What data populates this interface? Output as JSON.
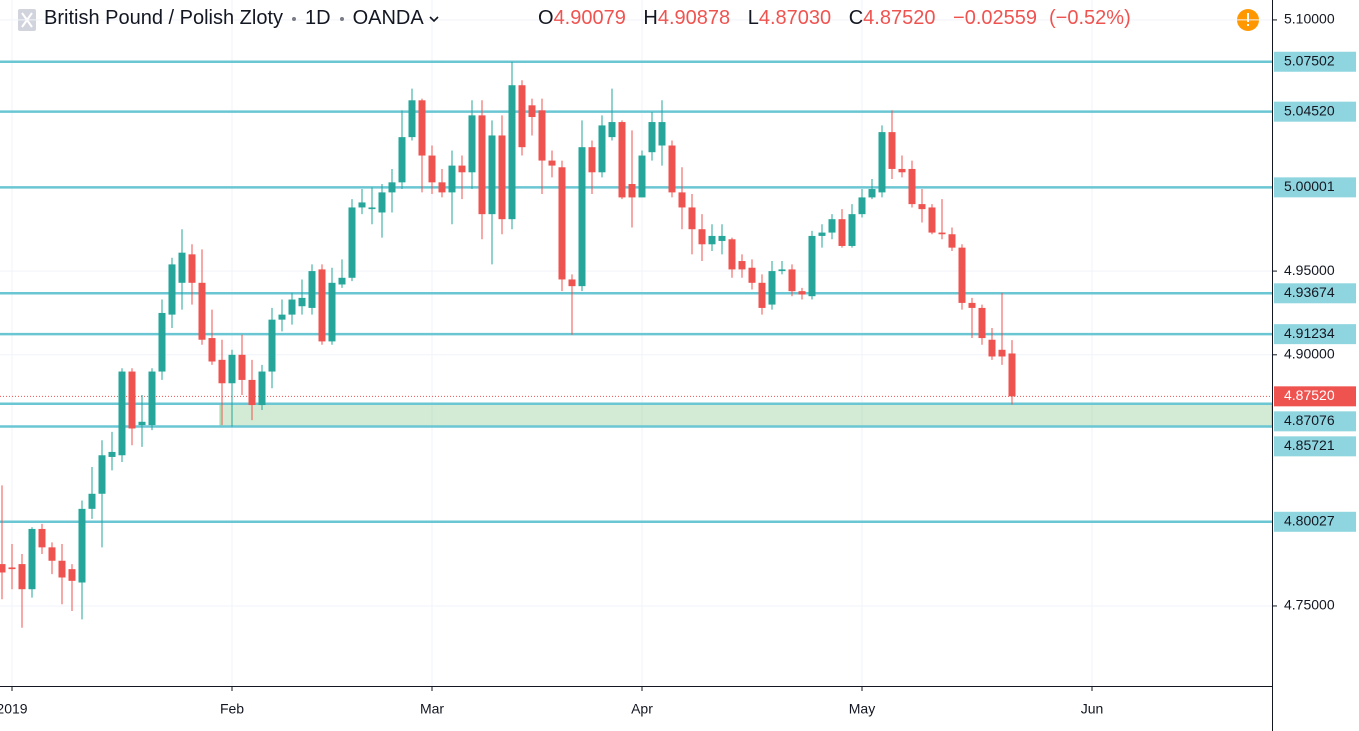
{
  "chart_data": {
    "type": "candlestick",
    "symbol": "British Pound / Polish Zloty",
    "interval": "1D",
    "exchange": "OANDA",
    "ohlc_names": [
      "O",
      "H",
      "L",
      "C"
    ],
    "ohlc_labels": [
      "4.90079",
      "4.90878",
      "4.87030",
      "4.87520"
    ],
    "change_label": "−0.02559",
    "change_pct_label": "(−0.52%)",
    "up_color": "#26a69a",
    "down_color": "#ef5350",
    "level_color": "#6ac6d3",
    "open": [
      4.775,
      4.773,
      4.775,
      4.76,
      4.796,
      4.785,
      4.777,
      4.772,
      4.764,
      4.808,
      4.817,
      4.839,
      4.84,
      4.89,
      4.858,
      4.858,
      4.89,
      4.924,
      4.943,
      4.96,
      4.943,
      4.91,
      4.897,
      4.883,
      4.9,
      4.885,
      4.87,
      4.89,
      4.921,
      4.924,
      4.929,
      4.928,
      4.951,
      4.908,
      4.942,
      4.946,
      4.988,
      4.987,
      4.985,
      4.997,
      5.003,
      5.03,
      5.052,
      5.019,
      5.003,
      4.997,
      5.013,
      5.009,
      5.043,
      4.984,
      5.031,
      4.981,
      5.061,
      5.049,
      5.046,
      5.016,
      5.012,
      4.945,
      4.941,
      5.024,
      5.009,
      5.03,
      5.039,
      5.002,
      4.994,
      5.021,
      5.025,
      5.025,
      4.997,
      4.988,
      4.975,
      4.966,
      4.968,
      4.969,
      4.956,
      4.952,
      4.943,
      4.93,
      4.95,
      4.951,
      4.938,
      4.935,
      4.971,
      4.973,
      4.981,
      4.965,
      4.984,
      4.994,
      4.997,
      5.033,
      5.011,
      5.011,
      4.99,
      4.988,
      4.973,
      4.972,
      4.964,
      4.931,
      4.928,
      4.909,
      4.903,
      4.90079
    ],
    "high": [
      4.822,
      4.787,
      4.781,
      4.797,
      4.799,
      4.788,
      4.787,
      4.775,
      4.813,
      4.833,
      4.849,
      4.854,
      4.892,
      4.892,
      4.876,
      4.892,
      4.933,
      4.958,
      4.975,
      4.966,
      4.963,
      4.927,
      4.909,
      4.903,
      4.912,
      4.897,
      4.894,
      4.928,
      4.933,
      4.937,
      4.945,
      4.954,
      4.954,
      4.952,
      4.957,
      4.993,
      4.999,
      5.0,
      5.002,
      5.011,
      5.046,
      5.059,
      5.053,
      5.025,
      5.011,
      5.022,
      5.019,
      5.052,
      5.052,
      5.04,
      5.043,
      5.075,
      5.064,
      5.053,
      5.053,
      5.022,
      5.016,
      4.948,
      5.04,
      5.028,
      5.043,
      5.059,
      5.04,
      5.034,
      5.022,
      5.045,
      5.052,
      5.028,
      5.012,
      4.996,
      4.984,
      4.978,
      4.978,
      4.97,
      4.96,
      4.957,
      4.948,
      4.956,
      4.956,
      4.954,
      4.94,
      4.974,
      4.978,
      4.984,
      4.987,
      4.99,
      4.999,
      5.005,
      5.037,
      5.046,
      5.019,
      5.016,
      4.999,
      4.99,
      4.993,
      4.976,
      4.966,
      4.934,
      4.93,
      4.916,
      4.937,
      4.90878
    ],
    "low": [
      4.754,
      4.76,
      4.737,
      4.755,
      4.781,
      4.769,
      4.751,
      4.747,
      4.742,
      4.802,
      4.785,
      4.831,
      4.836,
      4.846,
      4.845,
      4.855,
      4.885,
      4.916,
      4.927,
      4.93,
      4.906,
      4.894,
      4.858,
      4.857,
      4.876,
      4.861,
      4.867,
      4.88,
      4.914,
      4.918,
      4.924,
      4.924,
      4.906,
      4.906,
      4.94,
      4.944,
      4.984,
      4.978,
      4.97,
      4.985,
      4.999,
      5.028,
      4.997,
      4.996,
      4.994,
      4.978,
      4.993,
      4.999,
      4.969,
      4.954,
      4.972,
      4.975,
      5.019,
      5.031,
      4.996,
      5.006,
      4.938,
      4.912,
      4.938,
      4.996,
      5.006,
      5.028,
      4.993,
      4.976,
      4.994,
      5.016,
      5.013,
      4.994,
      4.975,
      4.96,
      4.956,
      4.962,
      4.96,
      4.946,
      4.946,
      4.939,
      4.924,
      4.927,
      4.948,
      4.935,
      4.933,
      4.933,
      4.964,
      4.969,
      4.964,
      4.964,
      4.982,
      4.993,
      4.994,
      5.005,
      5.006,
      4.988,
      4.979,
      4.972,
      4.969,
      4.962,
      4.927,
      4.91,
      4.906,
      4.897,
      4.894,
      4.8703
    ],
    "close": [
      4.77,
      4.772,
      4.76,
      4.796,
      4.785,
      4.777,
      4.767,
      4.765,
      4.808,
      4.817,
      4.84,
      4.842,
      4.89,
      4.856,
      4.86,
      4.89,
      4.925,
      4.954,
      4.961,
      4.943,
      4.909,
      4.896,
      4.883,
      4.9,
      4.885,
      4.87,
      4.89,
      4.921,
      4.924,
      4.933,
      4.934,
      4.95,
      4.908,
      4.943,
      4.946,
      4.988,
      4.991,
      4.988,
      4.997,
      5.003,
      5.03,
      5.052,
      5.019,
      5.003,
      4.997,
      5.013,
      5.009,
      5.043,
      4.984,
      5.031,
      4.981,
      5.061,
      5.024,
      5.042,
      5.016,
      5.013,
      4.945,
      4.941,
      5.024,
      5.009,
      5.037,
      5.039,
      4.994,
      4.994,
      5.019,
      5.039,
      5.039,
      4.997,
      4.988,
      4.975,
      4.966,
      4.971,
      4.971,
      4.951,
      4.951,
      4.943,
      4.928,
      4.95,
      4.951,
      4.938,
      4.936,
      4.971,
      4.973,
      4.981,
      4.965,
      4.984,
      4.994,
      4.999,
      5.033,
      5.011,
      5.009,
      4.99,
      4.987,
      4.973,
      4.972,
      4.964,
      4.931,
      4.928,
      4.91,
      4.899,
      4.899,
      4.8752
    ],
    "last_price": 4.8752,
    "levels": [
      {
        "value": 5.07502,
        "label": "5.07502"
      },
      {
        "value": 5.0452,
        "label": "5.04520"
      },
      {
        "value": 5.00001,
        "label": "5.00001"
      },
      {
        "value": 4.93674,
        "label": "4.93674"
      },
      {
        "value": 4.91234,
        "label": "4.91234"
      },
      {
        "value": 4.87076,
        "label": "4.87076"
      },
      {
        "value": 4.85721,
        "label": "4.85721"
      },
      {
        "value": 4.80027,
        "label": "4.80027"
      }
    ],
    "zone": [
      4.85721,
      4.87076
    ],
    "xlim": [
      -0.2,
      127
    ],
    "xticks": [
      {
        "value": 1,
        "label": "2019"
      },
      {
        "value": 23,
        "label": "Feb"
      },
      {
        "value": 43,
        "label": "Mar"
      },
      {
        "value": 64,
        "label": "Apr"
      },
      {
        "value": 86,
        "label": "May"
      },
      {
        "value": 109,
        "label": "Jun"
      }
    ],
    "ylim": [
      4.7022,
      5.1119
    ],
    "yticks": [
      {
        "value": 5.1,
        "label": "5.10000"
      },
      {
        "value": 4.95,
        "label": "4.95000"
      },
      {
        "value": 4.9,
        "label": "4.90000"
      },
      {
        "value": 4.75,
        "label": "4.75000"
      }
    ],
    "grid": true
  }
}
